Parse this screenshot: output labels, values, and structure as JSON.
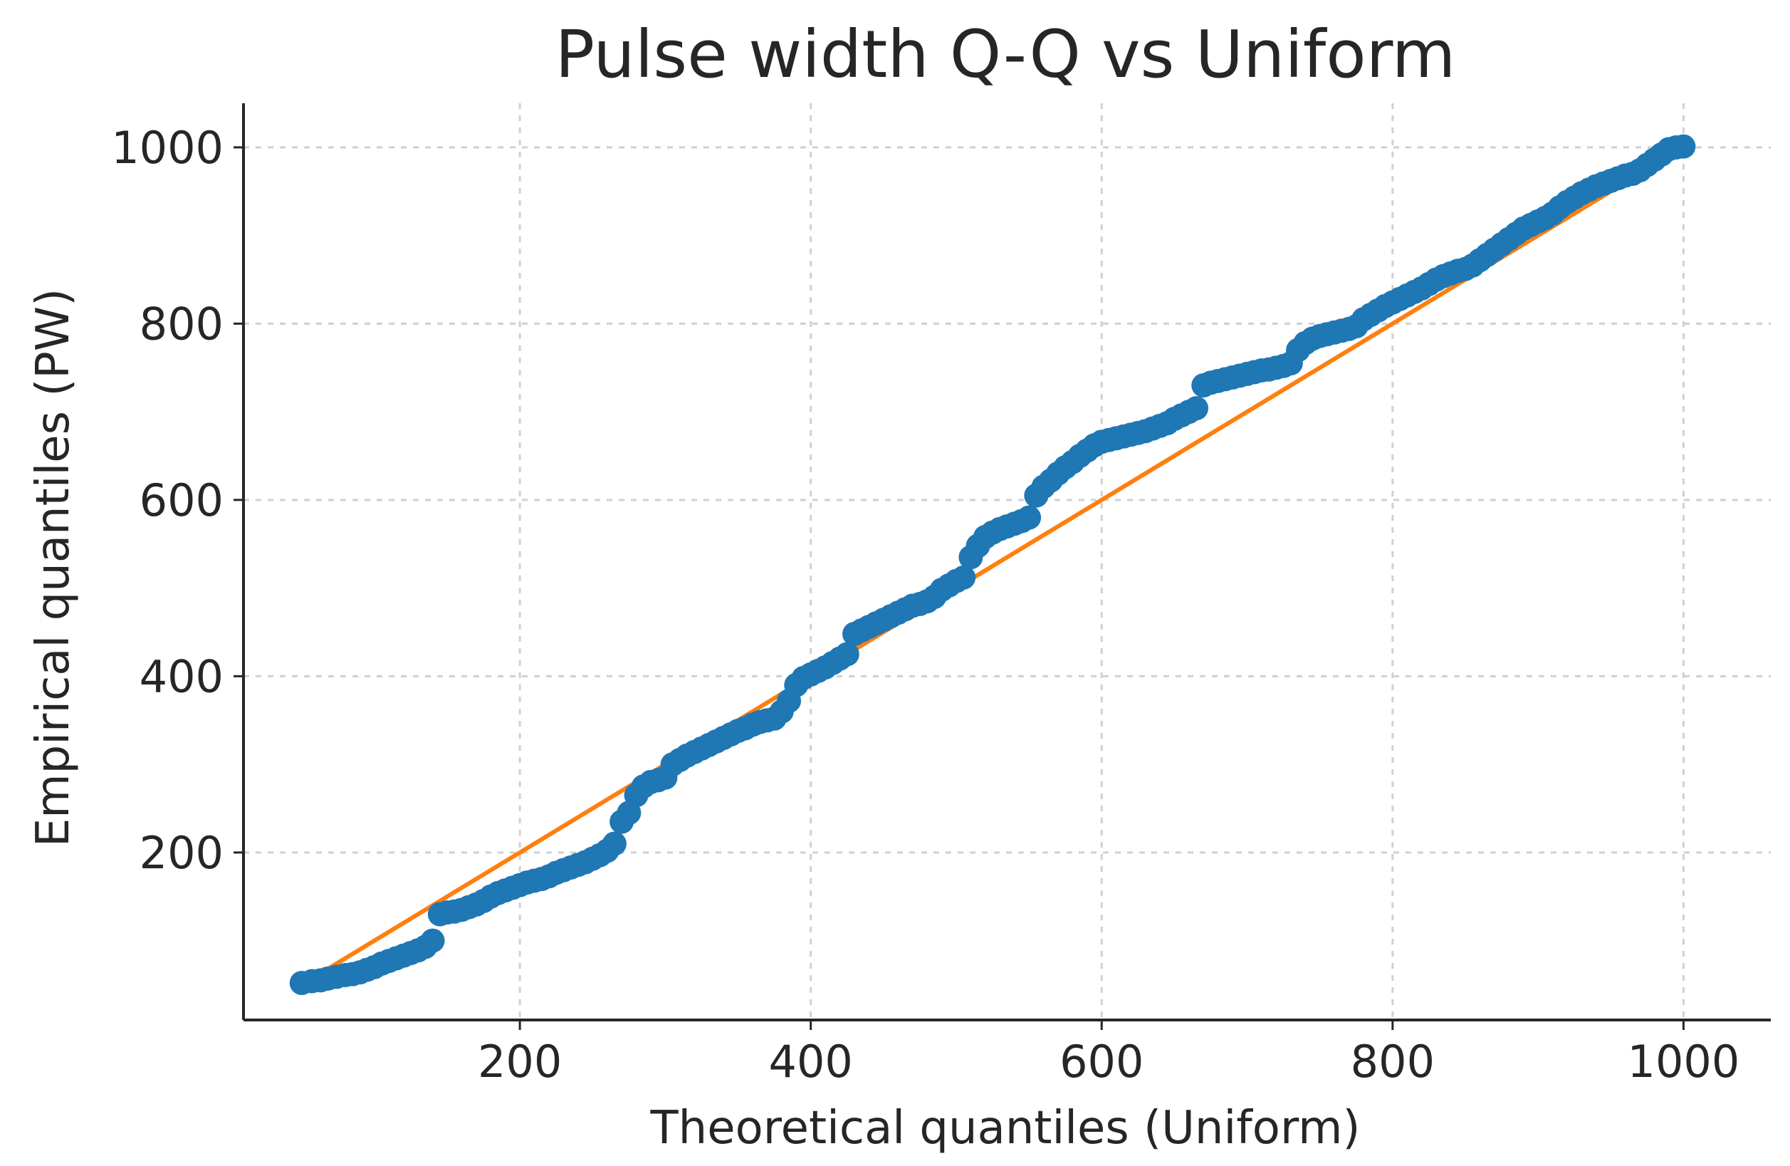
{
  "chart_data": {
    "type": "scatter",
    "title": "Pulse width Q-Q vs Uniform",
    "xlabel": "Theoretical quantiles (Uniform)",
    "ylabel": "Empirical quantiles (PW)",
    "xlim": [
      10,
      1060
    ],
    "ylim": [
      10,
      1050
    ],
    "x_ticks": [
      200,
      400,
      600,
      800,
      1000
    ],
    "y_ticks": [
      200,
      400,
      600,
      800,
      1000
    ],
    "grid": true,
    "series": [
      {
        "kind": "points",
        "color": "#1f77b4",
        "points": [
          [
            50,
            52
          ],
          [
            57,
            54
          ],
          [
            63,
            55
          ],
          [
            68,
            57
          ],
          [
            74,
            59
          ],
          [
            80,
            61
          ],
          [
            85,
            62
          ],
          [
            90,
            64
          ],
          [
            95,
            67
          ],
          [
            100,
            70
          ],
          [
            105,
            74
          ],
          [
            110,
            77
          ],
          [
            115,
            80
          ],
          [
            120,
            83
          ],
          [
            125,
            86
          ],
          [
            130,
            89
          ],
          [
            135,
            93
          ],
          [
            140,
            100
          ],
          [
            145,
            130
          ],
          [
            150,
            132
          ],
          [
            155,
            133
          ],
          [
            160,
            135
          ],
          [
            165,
            138
          ],
          [
            170,
            141
          ],
          [
            175,
            145
          ],
          [
            180,
            150
          ],
          [
            185,
            154
          ],
          [
            190,
            157
          ],
          [
            195,
            160
          ],
          [
            200,
            163
          ],
          [
            205,
            166
          ],
          [
            210,
            168
          ],
          [
            215,
            170
          ],
          [
            220,
            173
          ],
          [
            225,
            177
          ],
          [
            230,
            180
          ],
          [
            235,
            183
          ],
          [
            240,
            186
          ],
          [
            245,
            189
          ],
          [
            250,
            193
          ],
          [
            255,
            197
          ],
          [
            260,
            202
          ],
          [
            265,
            210
          ],
          [
            270,
            235
          ],
          [
            275,
            245
          ],
          [
            280,
            265
          ],
          [
            285,
            275
          ],
          [
            290,
            280
          ],
          [
            295,
            282
          ],
          [
            300,
            285
          ],
          [
            305,
            300
          ],
          [
            310,
            305
          ],
          [
            315,
            310
          ],
          [
            320,
            314
          ],
          [
            325,
            318
          ],
          [
            330,
            322
          ],
          [
            335,
            326
          ],
          [
            340,
            330
          ],
          [
            345,
            334
          ],
          [
            350,
            338
          ],
          [
            355,
            341
          ],
          [
            360,
            345
          ],
          [
            365,
            348
          ],
          [
            370,
            350
          ],
          [
            375,
            352
          ],
          [
            380,
            360
          ],
          [
            385,
            372
          ],
          [
            390,
            390
          ],
          [
            395,
            398
          ],
          [
            400,
            402
          ],
          [
            405,
            406
          ],
          [
            410,
            410
          ],
          [
            415,
            415
          ],
          [
            420,
            420
          ],
          [
            425,
            425
          ],
          [
            430,
            448
          ],
          [
            435,
            452
          ],
          [
            440,
            456
          ],
          [
            445,
            460
          ],
          [
            450,
            464
          ],
          [
            455,
            468
          ],
          [
            460,
            472
          ],
          [
            465,
            476
          ],
          [
            470,
            480
          ],
          [
            475,
            482
          ],
          [
            480,
            485
          ],
          [
            485,
            490
          ],
          [
            490,
            498
          ],
          [
            495,
            503
          ],
          [
            500,
            508
          ],
          [
            505,
            512
          ],
          [
            510,
            535
          ],
          [
            515,
            548
          ],
          [
            520,
            558
          ],
          [
            525,
            563
          ],
          [
            530,
            567
          ],
          [
            535,
            570
          ],
          [
            540,
            573
          ],
          [
            545,
            576
          ],
          [
            550,
            580
          ],
          [
            555,
            605
          ],
          [
            560,
            615
          ],
          [
            565,
            622
          ],
          [
            570,
            630
          ],
          [
            575,
            637
          ],
          [
            580,
            643
          ],
          [
            585,
            650
          ],
          [
            590,
            656
          ],
          [
            595,
            662
          ],
          [
            600,
            666
          ],
          [
            605,
            668
          ],
          [
            610,
            670
          ],
          [
            615,
            672
          ],
          [
            620,
            674
          ],
          [
            625,
            676
          ],
          [
            630,
            678
          ],
          [
            635,
            681
          ],
          [
            640,
            684
          ],
          [
            645,
            687
          ],
          [
            650,
            692
          ],
          [
            655,
            696
          ],
          [
            660,
            700
          ],
          [
            665,
            704
          ],
          [
            670,
            730
          ],
          [
            675,
            733
          ],
          [
            680,
            735
          ],
          [
            685,
            737
          ],
          [
            690,
            739
          ],
          [
            695,
            741
          ],
          [
            700,
            743
          ],
          [
            705,
            745
          ],
          [
            710,
            747
          ],
          [
            715,
            748
          ],
          [
            720,
            750
          ],
          [
            725,
            752
          ],
          [
            730,
            755
          ],
          [
            735,
            770
          ],
          [
            740,
            778
          ],
          [
            745,
            783
          ],
          [
            750,
            786
          ],
          [
            755,
            788
          ],
          [
            760,
            790
          ],
          [
            765,
            792
          ],
          [
            770,
            794
          ],
          [
            775,
            797
          ],
          [
            780,
            805
          ],
          [
            785,
            810
          ],
          [
            790,
            815
          ],
          [
            795,
            820
          ],
          [
            800,
            824
          ],
          [
            805,
            828
          ],
          [
            810,
            832
          ],
          [
            815,
            836
          ],
          [
            820,
            840
          ],
          [
            825,
            845
          ],
          [
            830,
            850
          ],
          [
            835,
            854
          ],
          [
            840,
            857
          ],
          [
            845,
            860
          ],
          [
            850,
            862
          ],
          [
            855,
            866
          ],
          [
            860,
            872
          ],
          [
            865,
            878
          ],
          [
            870,
            884
          ],
          [
            875,
            890
          ],
          [
            880,
            896
          ],
          [
            885,
            902
          ],
          [
            890,
            908
          ],
          [
            895,
            912
          ],
          [
            900,
            916
          ],
          [
            905,
            920
          ],
          [
            910,
            925
          ],
          [
            915,
            932
          ],
          [
            920,
            938
          ],
          [
            925,
            943
          ],
          [
            930,
            948
          ],
          [
            935,
            952
          ],
          [
            940,
            956
          ],
          [
            945,
            959
          ],
          [
            950,
            962
          ],
          [
            955,
            965
          ],
          [
            960,
            968
          ],
          [
            965,
            970
          ],
          [
            970,
            974
          ],
          [
            975,
            980
          ],
          [
            980,
            986
          ],
          [
            985,
            992
          ],
          [
            990,
            998
          ],
          [
            995,
            1000
          ],
          [
            1000,
            1001
          ]
        ]
      },
      {
        "kind": "line",
        "color": "#ff7f0e",
        "points": [
          [
            50,
            50
          ],
          [
            1000,
            1000
          ]
        ]
      }
    ]
  }
}
